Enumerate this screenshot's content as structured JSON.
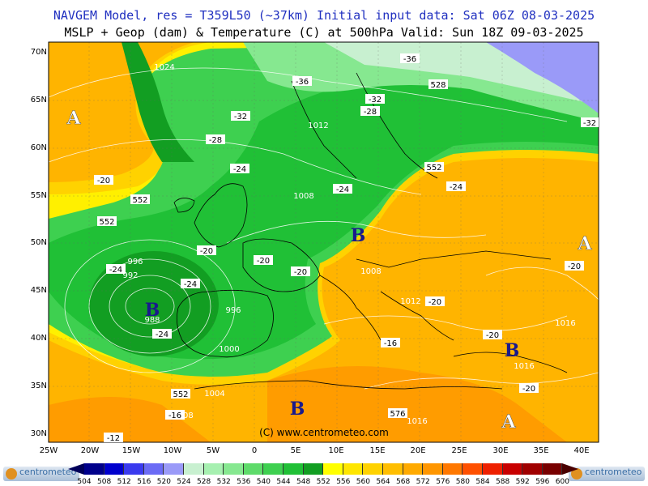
{
  "header": {
    "line1": "NAVGEM Model, res = T359L50 (~37km)    Initial input data: Sat 06Z 08-03-2025",
    "line2": "MSLP + Geop (dam) & Temperature (C) at 500hPa  Valid: Sun 18Z 09-03-2025"
  },
  "axes": {
    "longitudes": [
      "25W",
      "20W",
      "15W",
      "10W",
      "5W",
      "0",
      "5E",
      "10E",
      "15E",
      "20E",
      "25E",
      "30E",
      "35E",
      "40E"
    ],
    "latitudes": [
      "70N",
      "65N",
      "60N",
      "55N",
      "50N",
      "45N",
      "40N",
      "35N",
      "30N"
    ]
  },
  "colorbar": {
    "values": [
      "504",
      "508",
      "512",
      "516",
      "520",
      "524",
      "528",
      "532",
      "536",
      "540",
      "544",
      "548",
      "552",
      "556",
      "560",
      "564",
      "568",
      "572",
      "576",
      "580",
      "584",
      "588",
      "592",
      "596",
      "600"
    ],
    "colors": [
      "#00008b",
      "#0000cd",
      "#3a3aee",
      "#6b6bf5",
      "#9a9af8",
      "#c8f0d0",
      "#a6f0b0",
      "#86e890",
      "#5edb6a",
      "#3ed050",
      "#20c036",
      "#129e22",
      "#ffff00",
      "#ffe600",
      "#ffd200",
      "#ffbe00",
      "#ffaa00",
      "#ff9600",
      "#ff7800",
      "#ff5000",
      "#ee2000",
      "#c80000",
      "#a00000",
      "#780000",
      "#4a0000"
    ]
  },
  "logo_text": "centrometeo",
  "copyright": "(C) www.centrometeo.com",
  "pressure_centers": [
    "A",
    "A",
    "B",
    "B",
    "B",
    "B",
    "A"
  ],
  "isobar_labels": [
    "1024",
    "1012",
    "1008",
    "1008",
    "1012",
    "1016",
    "1016",
    "1016",
    "996",
    "992",
    "988",
    "996",
    "1000",
    "1004",
    "1008"
  ],
  "geopotential_labels": [
    "552",
    "552",
    "552",
    "552",
    "528",
    "576"
  ],
  "temperature_labels": [
    "-36",
    "-36",
    "-32",
    "-32",
    "-28",
    "-28",
    "-24",
    "-24",
    "-24",
    "-24",
    "-24",
    "-24",
    "-20",
    "-20",
    "-20",
    "-20",
    "-20",
    "-20",
    "-20",
    "-20",
    "-16",
    "-16",
    "-12",
    "-32"
  ]
}
